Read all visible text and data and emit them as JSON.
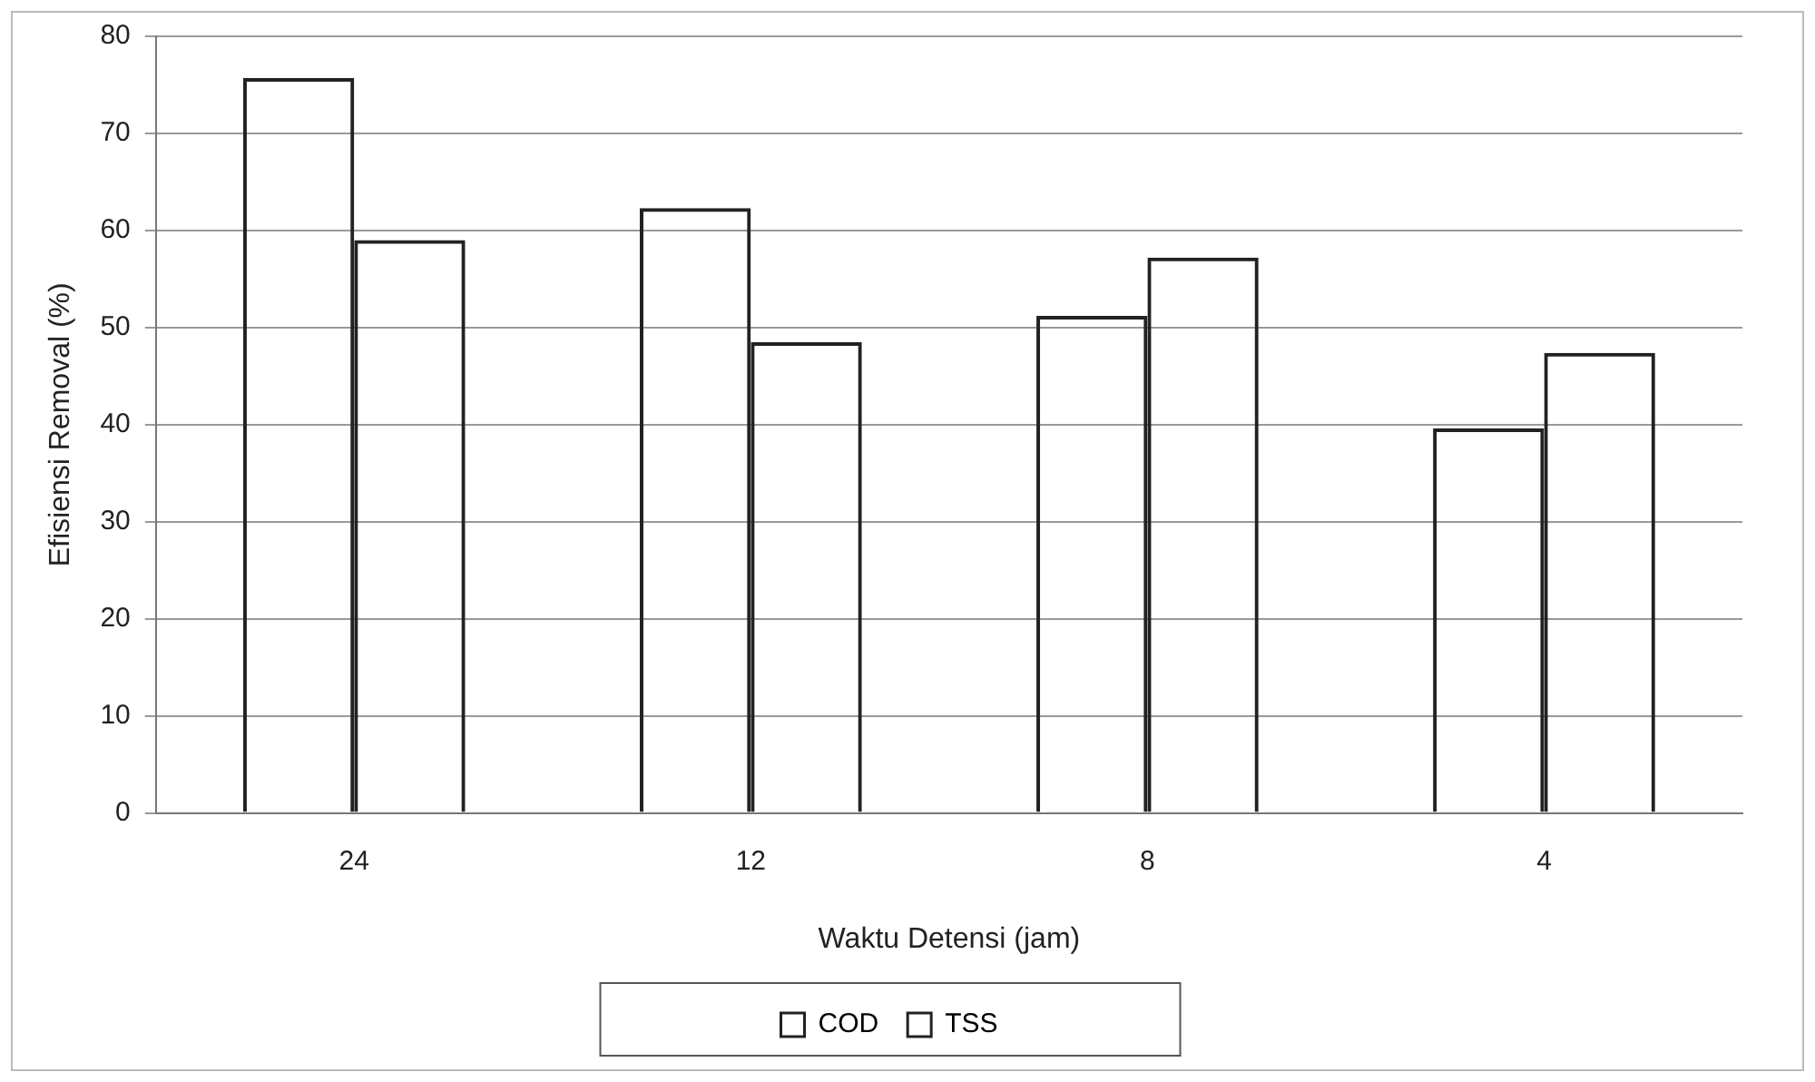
{
  "chart_data": {
    "type": "bar",
    "xlabel": "Waktu Detensi (jam)",
    "ylabel": "Efisiensi Removal (%)",
    "categories": [
      "24",
      "12",
      "8",
      "4"
    ],
    "series": [
      {
        "name": "COD",
        "color": "#222222",
        "values": [
          75.7,
          62.3,
          51.2,
          39.6
        ]
      },
      {
        "name": "TSS",
        "color": "#222222",
        "values": [
          59.0,
          48.5,
          57.2,
          47.4
        ]
      }
    ],
    "ylim": [
      0,
      80
    ],
    "yticks": [
      0,
      10,
      20,
      30,
      40,
      50,
      60,
      70,
      80
    ],
    "grid": "y",
    "legend": "bottom"
  }
}
